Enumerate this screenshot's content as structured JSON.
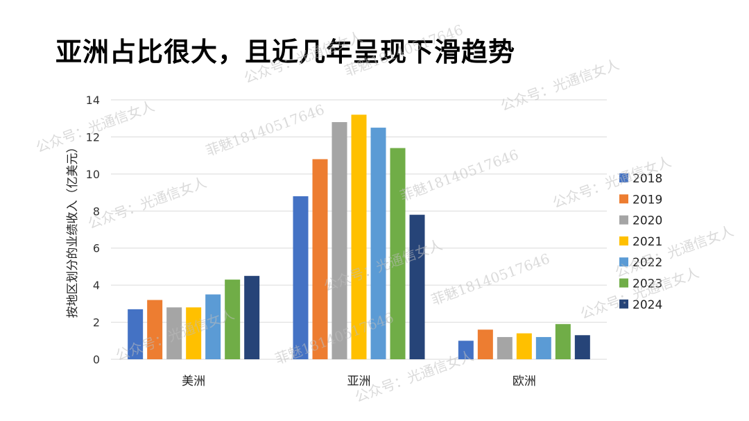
{
  "title": "亚洲占比很大，且近几年呈现下滑趋势",
  "watermarks": [
    "公众号：光通信女人",
    "菲魅18140517646"
  ],
  "chart_data": {
    "type": "bar",
    "title": "",
    "xlabel": "",
    "ylabel": "按地区划分的业绩收入（亿美元）",
    "ylim": [
      0,
      14
    ],
    "yticks": [
      0,
      2,
      4,
      6,
      8,
      10,
      12,
      14
    ],
    "grid": true,
    "legend_position": "right",
    "categories": [
      "美洲",
      "亚洲",
      "欧洲"
    ],
    "series": [
      {
        "name": "2018",
        "color": "#4472C4",
        "values": [
          2.7,
          8.8,
          1.0
        ]
      },
      {
        "name": "2019",
        "color": "#ED7D31",
        "values": [
          3.2,
          10.8,
          1.6
        ]
      },
      {
        "name": "2020",
        "color": "#A5A5A5",
        "values": [
          2.8,
          12.8,
          1.2
        ]
      },
      {
        "name": "2021",
        "color": "#FFC000",
        "values": [
          2.8,
          13.2,
          1.4
        ]
      },
      {
        "name": "2022",
        "color": "#5B9BD5",
        "values": [
          3.5,
          12.5,
          1.2
        ]
      },
      {
        "name": "2023",
        "color": "#70AD47",
        "values": [
          4.3,
          11.4,
          1.9
        ]
      },
      {
        "name": "2024",
        "color": "#264478",
        "values": [
          4.5,
          7.8,
          1.3
        ]
      }
    ]
  }
}
